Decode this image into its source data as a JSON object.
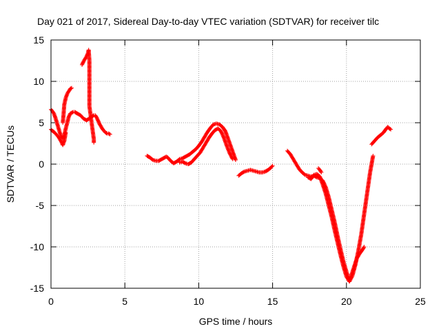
{
  "chart_data": {
    "type": "scatter",
    "title": "Day 021 of 2017, Sidereal Day-to-day VTEC variation (SDTVAR) for receiver tilc",
    "xlabel": "GPS time / hours",
    "ylabel": "SDTVAR / TECUs",
    "xlim": [
      0,
      25
    ],
    "ylim": [
      -15,
      15
    ],
    "xticks": [
      0,
      5,
      10,
      15,
      20,
      25
    ],
    "yticks": [
      -15,
      -10,
      -5,
      0,
      5,
      10,
      15
    ],
    "grid": true,
    "marker": "+",
    "color": "#ff0000",
    "series": [
      {
        "name": "seg_a",
        "points": [
          [
            0,
            6.6
          ],
          [
            0.1,
            6.4
          ],
          [
            0.2,
            6.1
          ],
          [
            0.3,
            5.6
          ],
          [
            0.4,
            5.0
          ],
          [
            0.5,
            4.4
          ],
          [
            0.6,
            3.8
          ],
          [
            0.7,
            3.3
          ],
          [
            0.8,
            3.1
          ],
          [
            0.9,
            3.5
          ],
          [
            1.0,
            4.3
          ],
          [
            1.1,
            5.0
          ],
          [
            1.2,
            5.7
          ],
          [
            1.3,
            6.1
          ],
          [
            1.4,
            6.2
          ],
          [
            1.5,
            6.3
          ],
          [
            1.6,
            6.3
          ],
          [
            1.7,
            6.2
          ],
          [
            1.8,
            6.1
          ],
          [
            1.9,
            6.0
          ],
          [
            2.0,
            5.9
          ],
          [
            2.1,
            5.7
          ],
          [
            2.2,
            5.5
          ],
          [
            2.3,
            5.4
          ],
          [
            2.4,
            5.3
          ],
          [
            2.5,
            5.4
          ],
          [
            2.6,
            5.5
          ],
          [
            2.7,
            5.7
          ],
          [
            2.8,
            5.8
          ],
          [
            2.9,
            5.9
          ],
          [
            3.0,
            5.9
          ],
          [
            3.1,
            5.6
          ],
          [
            3.2,
            5.2
          ],
          [
            3.3,
            4.8
          ],
          [
            3.4,
            4.5
          ],
          [
            3.5,
            4.2
          ],
          [
            3.6,
            4.0
          ],
          [
            3.7,
            3.8
          ],
          [
            3.8,
            3.7
          ],
          [
            3.9,
            3.7
          ],
          [
            4.0,
            3.6
          ]
        ]
      },
      {
        "name": "seg_b",
        "points": [
          [
            0,
            4.2
          ],
          [
            0.1,
            4.0
          ],
          [
            0.2,
            3.9
          ],
          [
            0.3,
            3.7
          ],
          [
            0.4,
            3.5
          ],
          [
            0.5,
            3.3
          ],
          [
            0.6,
            3.0
          ],
          [
            0.7,
            2.7
          ],
          [
            0.8,
            2.3
          ],
          [
            0.9,
            2.8
          ],
          [
            1.0,
            3.8
          ]
        ]
      },
      {
        "name": "seg_c",
        "points": [
          [
            0.8,
            5.0
          ],
          [
            0.85,
            6.0
          ],
          [
            0.9,
            7.2
          ],
          [
            1.0,
            8.0
          ],
          [
            1.1,
            8.5
          ],
          [
            1.2,
            8.8
          ],
          [
            1.3,
            9.1
          ],
          [
            1.4,
            9.2
          ]
        ]
      },
      {
        "name": "seg_d",
        "points": [
          [
            2.1,
            12.0
          ],
          [
            2.2,
            12.4
          ],
          [
            2.3,
            12.7
          ],
          [
            2.4,
            13.0
          ],
          [
            2.5,
            13.4
          ],
          [
            2.55,
            13.8
          ],
          [
            2.6,
            12.5
          ],
          [
            2.6,
            11.0
          ],
          [
            2.6,
            9.5
          ],
          [
            2.6,
            8.0
          ],
          [
            2.6,
            7.0
          ],
          [
            2.9,
            3.0
          ],
          [
            2.9,
            2.6
          ]
        ]
      },
      {
        "name": "seg_e",
        "points": [
          [
            6.5,
            1.0
          ],
          [
            6.7,
            0.8
          ],
          [
            6.9,
            0.5
          ],
          [
            7.1,
            0.4
          ],
          [
            7.3,
            0.4
          ],
          [
            7.5,
            0.6
          ],
          [
            7.7,
            0.8
          ],
          [
            7.8,
            0.9
          ],
          [
            7.9,
            0.8
          ],
          [
            8.1,
            0.4
          ],
          [
            8.3,
            0.1
          ],
          [
            8.5,
            0.3
          ],
          [
            8.7,
            0.6
          ],
          [
            8.9,
            0.7
          ],
          [
            9.0,
            0.8
          ],
          [
            9.2,
            1.0
          ],
          [
            9.4,
            1.2
          ],
          [
            9.6,
            1.5
          ],
          [
            9.8,
            1.8
          ],
          [
            10.0,
            2.2
          ],
          [
            10.2,
            2.7
          ],
          [
            10.4,
            3.3
          ],
          [
            10.6,
            3.9
          ],
          [
            10.8,
            4.4
          ],
          [
            11.0,
            4.8
          ],
          [
            11.2,
            4.9
          ],
          [
            11.4,
            4.8
          ],
          [
            11.6,
            4.5
          ],
          [
            11.8,
            4.0
          ],
          [
            12.0,
            3.0
          ],
          [
            12.2,
            2.0
          ],
          [
            12.4,
            1.0
          ],
          [
            12.5,
            0.5
          ]
        ]
      },
      {
        "name": "seg_f",
        "points": [
          [
            8.7,
            0.2
          ],
          [
            8.9,
            0.3
          ],
          [
            9.1,
            0.1
          ],
          [
            9.3,
            0.0
          ],
          [
            9.5,
            0.2
          ],
          [
            9.7,
            0.6
          ],
          [
            9.9,
            1.0
          ],
          [
            10.1,
            1.4
          ],
          [
            10.3,
            2.0
          ],
          [
            10.5,
            2.6
          ],
          [
            10.7,
            3.2
          ],
          [
            10.9,
            3.7
          ],
          [
            11.1,
            4.1
          ],
          [
            11.3,
            4.3
          ],
          [
            11.5,
            4.0
          ],
          [
            11.7,
            3.2
          ],
          [
            11.9,
            2.2
          ],
          [
            12.1,
            1.3
          ],
          [
            12.3,
            0.6
          ]
        ]
      },
      {
        "name": "seg_g",
        "points": [
          [
            12.7,
            -1.4
          ],
          [
            12.9,
            -1.1
          ],
          [
            13.1,
            -0.9
          ],
          [
            13.3,
            -0.8
          ],
          [
            13.5,
            -0.7
          ],
          [
            13.7,
            -0.8
          ],
          [
            13.9,
            -0.9
          ],
          [
            14.1,
            -1.0
          ],
          [
            14.3,
            -1.0
          ],
          [
            14.5,
            -0.9
          ],
          [
            14.7,
            -0.7
          ],
          [
            14.9,
            -0.4
          ],
          [
            15.0,
            -0.2
          ]
        ]
      },
      {
        "name": "seg_h",
        "points": [
          [
            16.0,
            1.6
          ],
          [
            16.2,
            1.2
          ],
          [
            16.4,
            0.6
          ],
          [
            16.6,
            0.0
          ],
          [
            16.8,
            -0.6
          ],
          [
            17.0,
            -1.0
          ],
          [
            17.2,
            -1.3
          ],
          [
            17.4,
            -1.4
          ],
          [
            17.6,
            -1.5
          ],
          [
            17.8,
            -1.4
          ],
          [
            18.0,
            -1.6
          ],
          [
            18.2,
            -1.7
          ],
          [
            18.4,
            -2.0
          ],
          [
            18.6,
            -2.8
          ],
          [
            18.8,
            -4.0
          ],
          [
            19.0,
            -5.5
          ],
          [
            19.2,
            -7.0
          ],
          [
            19.4,
            -8.7
          ],
          [
            19.6,
            -10.3
          ],
          [
            19.8,
            -11.8
          ],
          [
            20.0,
            -13.0
          ],
          [
            20.1,
            -13.6
          ],
          [
            20.2,
            -14.0
          ],
          [
            20.3,
            -13.6
          ],
          [
            20.5,
            -12.5
          ],
          [
            20.7,
            -11.4
          ],
          [
            20.9,
            -10.8
          ],
          [
            21.1,
            -10.3
          ],
          [
            21.2,
            -10.0
          ]
        ]
      },
      {
        "name": "seg_i",
        "points": [
          [
            17.4,
            -1.6
          ],
          [
            17.6,
            -1.8
          ],
          [
            17.8,
            -1.3
          ],
          [
            18.0,
            -1.2
          ],
          [
            18.2,
            -1.5
          ],
          [
            18.4,
            -2.5
          ],
          [
            18.6,
            -3.6
          ],
          [
            18.8,
            -5.0
          ],
          [
            19.0,
            -6.4
          ],
          [
            19.2,
            -8.0
          ],
          [
            19.4,
            -9.5
          ],
          [
            19.6,
            -11.0
          ],
          [
            19.8,
            -12.4
          ],
          [
            20.0,
            -13.6
          ],
          [
            20.2,
            -14.2
          ],
          [
            20.4,
            -13.5
          ],
          [
            20.6,
            -12.2
          ],
          [
            20.8,
            -10.5
          ],
          [
            21.0,
            -8.5
          ],
          [
            21.2,
            -6.0
          ],
          [
            21.4,
            -3.5
          ],
          [
            21.6,
            -1.0
          ],
          [
            21.8,
            1.0
          ]
        ]
      },
      {
        "name": "seg_j",
        "points": [
          [
            21.7,
            2.4
          ],
          [
            21.9,
            2.8
          ],
          [
            22.1,
            3.2
          ],
          [
            22.3,
            3.5
          ],
          [
            22.5,
            3.8
          ],
          [
            22.7,
            4.3
          ],
          [
            22.8,
            4.5
          ],
          [
            22.9,
            4.3
          ],
          [
            23.0,
            4.2
          ]
        ]
      },
      {
        "name": "seg_k",
        "points": [
          [
            18.1,
            -0.5
          ],
          [
            18.2,
            -0.7
          ],
          [
            18.3,
            -1.0
          ]
        ]
      }
    ]
  }
}
